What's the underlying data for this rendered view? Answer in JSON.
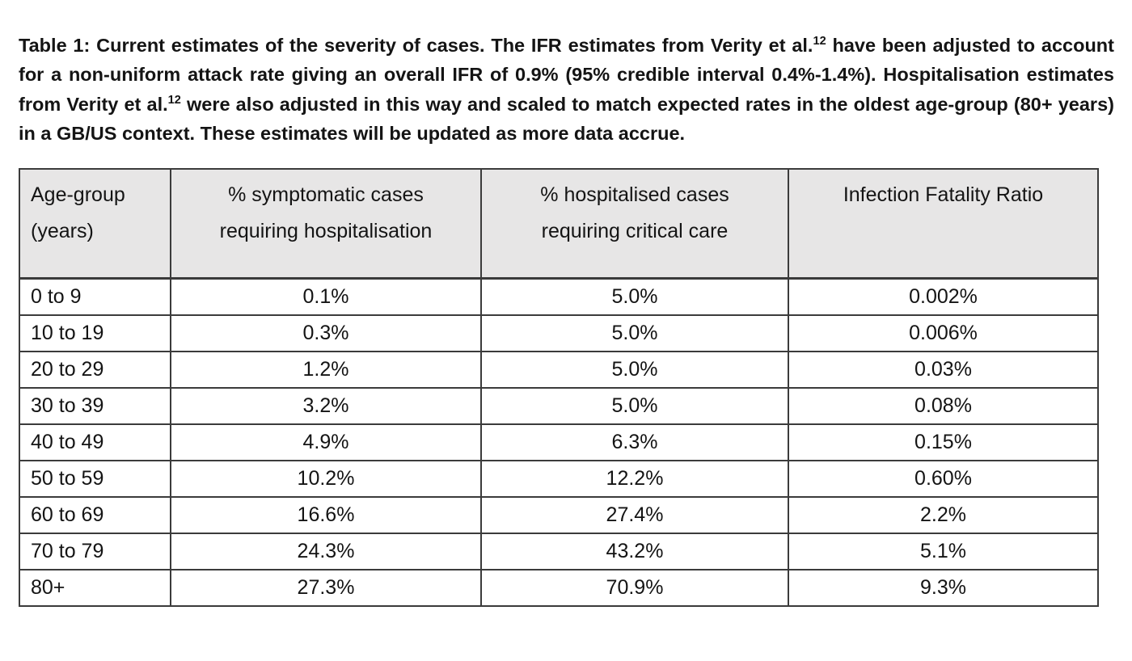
{
  "caption": {
    "segments": [
      {
        "text": "Table 1: Current estimates of the severity of cases. The IFR estimates from Verity et al.",
        "superscript": false
      },
      {
        "text": "12",
        "superscript": true
      },
      {
        "text": " have been adjusted to account for a non-uniform attack rate giving an overall IFR of 0.9% (95% credible interval 0.4%-1.4%). Hospitalisation estimates from Verity et al.",
        "superscript": false
      },
      {
        "text": "12",
        "superscript": true
      },
      {
        "text": " were also adjusted in this way and scaled to match expected rates in the oldest age-group (80+ years) in a GB/US context. These estimates will be updated as more data accrue.",
        "superscript": false
      }
    ]
  },
  "table": {
    "headers": [
      {
        "lines": [
          "Age-group",
          "(years)"
        ],
        "align": "left"
      },
      {
        "lines": [
          "% symptomatic cases",
          "requiring hospitalisation"
        ],
        "align": "center"
      },
      {
        "lines": [
          "% hospitalised cases",
          "requiring critical care"
        ],
        "align": "center"
      },
      {
        "lines": [
          "Infection Fatality Ratio"
        ],
        "align": "center"
      }
    ],
    "rows": [
      [
        "0 to 9",
        "0.1%",
        "5.0%",
        "0.002%"
      ],
      [
        "10 to 19",
        "0.3%",
        "5.0%",
        "0.006%"
      ],
      [
        "20 to 29",
        "1.2%",
        "5.0%",
        "0.03%"
      ],
      [
        "30 to 39",
        "3.2%",
        "5.0%",
        "0.08%"
      ],
      [
        "40 to 49",
        "4.9%",
        "6.3%",
        "0.15%"
      ],
      [
        "50 to 59",
        "10.2%",
        "12.2%",
        "0.60%"
      ],
      [
        "60 to 69",
        "16.6%",
        "27.4%",
        "2.2%"
      ],
      [
        "70 to 79",
        "24.3%",
        "43.2%",
        "5.1%"
      ],
      [
        "80+",
        "27.3%",
        "70.9%",
        "9.3%"
      ]
    ]
  },
  "colors": {
    "header_background": "#e7e6e6",
    "border": "#3b3b3b",
    "text": "#141414",
    "page_background": "#ffffff"
  }
}
